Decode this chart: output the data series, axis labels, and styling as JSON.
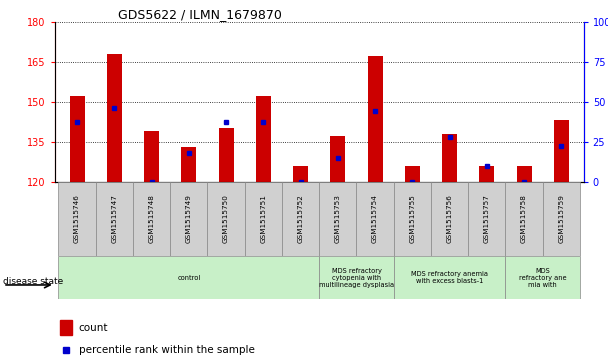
{
  "title": "GDS5622 / ILMN_1679870",
  "samples": [
    "GSM1515746",
    "GSM1515747",
    "GSM1515748",
    "GSM1515749",
    "GSM1515750",
    "GSM1515751",
    "GSM1515752",
    "GSM1515753",
    "GSM1515754",
    "GSM1515755",
    "GSM1515756",
    "GSM1515757",
    "GSM1515758",
    "GSM1515759"
  ],
  "counts": [
    152,
    168,
    139,
    133,
    140,
    152,
    126,
    137,
    167,
    126,
    138,
    126,
    126,
    143
  ],
  "percentile_ranks": [
    37,
    46,
    0,
    18,
    37,
    37,
    0,
    15,
    44,
    0,
    28,
    10,
    0,
    22
  ],
  "ylim_left": [
    120,
    180
  ],
  "ylim_right": [
    0,
    100
  ],
  "yticks_left": [
    120,
    135,
    150,
    165,
    180
  ],
  "yticks_right": [
    0,
    25,
    50,
    75,
    100
  ],
  "bar_color": "#cc0000",
  "marker_color": "#0000cc",
  "bar_width": 0.4,
  "disease_groups": [
    {
      "label": "control",
      "start": 0,
      "end": 7
    },
    {
      "label": "MDS refractory\ncytopenia with\nmultilineage dysplasia",
      "start": 7,
      "end": 9
    },
    {
      "label": "MDS refractory anemia\nwith excess blasts-1",
      "start": 9,
      "end": 12
    },
    {
      "label": "MDS\nrefractory ane\nmia with",
      "start": 12,
      "end": 14
    }
  ],
  "group_color": "#c8f0c8",
  "sample_box_color": "#d0d0d0",
  "legend_count_label": "count",
  "legend_percentile_label": "percentile rank within the sample",
  "disease_state_label": "disease state"
}
